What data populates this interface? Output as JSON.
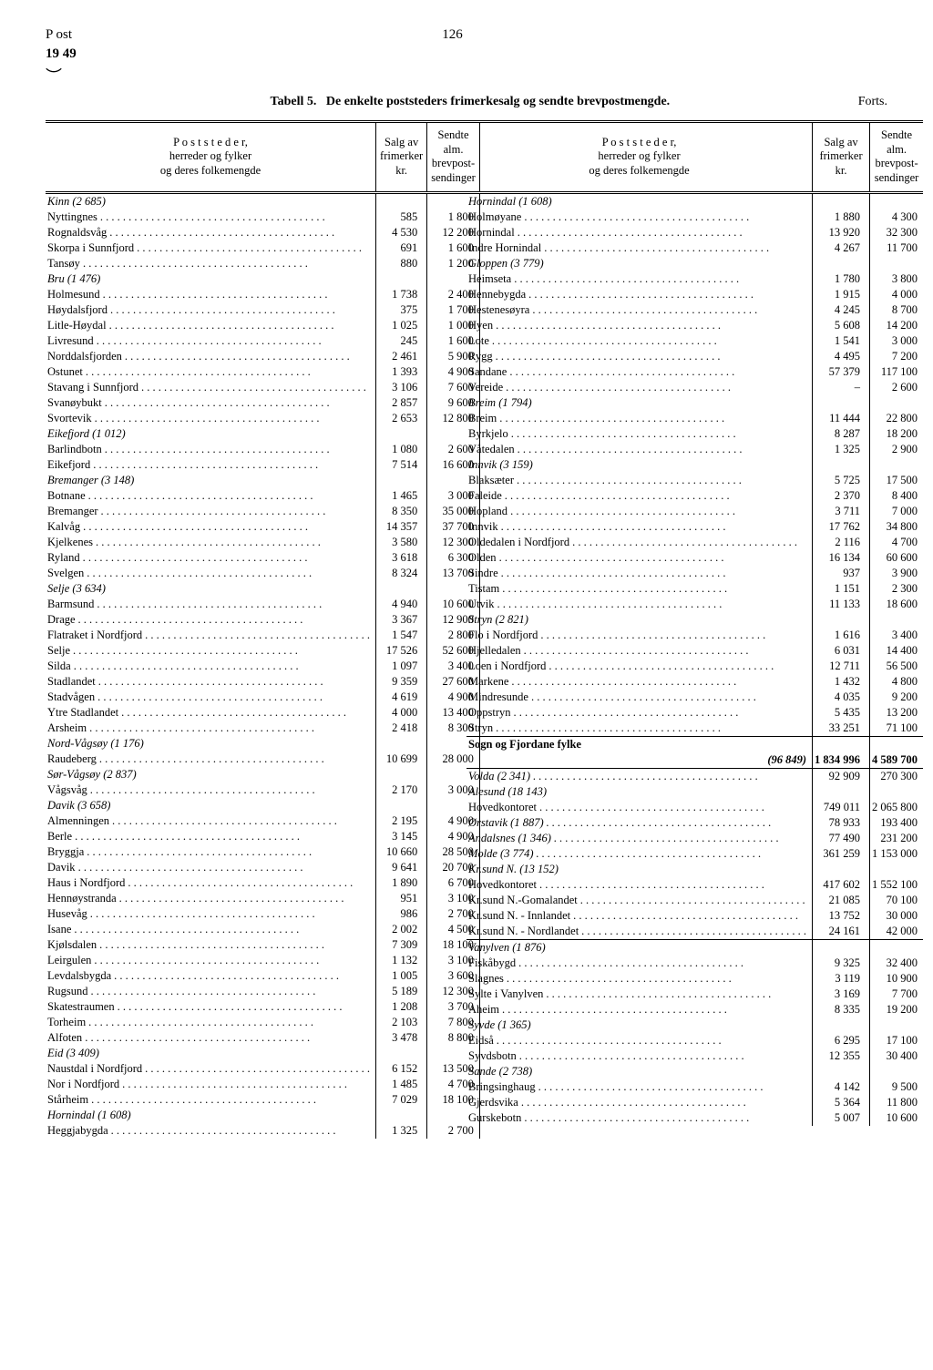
{
  "header": {
    "post": "P ost",
    "page": "126",
    "year": "19 49",
    "tableLabel": "Tabell 5.",
    "title": "De enkelte poststeders frimerkesalg og sendte brevpostmengde.",
    "forts": "Forts."
  },
  "colHeaders": {
    "h1": "P o s t s t e d e r,\nherreder og fylker\nog deres folkemengde",
    "h2": "Salg av\nfrimerker\nkr.",
    "h3": "Sendte\nalm.\nbrevpost-\nsendinger"
  },
  "left": [
    {
      "n": "Kinn (2 685)",
      "i": true
    },
    {
      "n": "Nyttingnes",
      "a": "585",
      "b": "1 800"
    },
    {
      "n": "Rognaldsvåg",
      "a": "4 530",
      "b": "12 200"
    },
    {
      "n": "Skorpa i Sunnfjord",
      "a": "691",
      "b": "1 600"
    },
    {
      "n": "Tansøy",
      "a": "880",
      "b": "1 200"
    },
    {
      "n": "Bru (1 476)",
      "i": true
    },
    {
      "n": "Holmesund",
      "a": "1 738",
      "b": "2 400"
    },
    {
      "n": "Høydalsfjord",
      "a": "375",
      "b": "1 700"
    },
    {
      "n": "Litle-Høydal",
      "a": "1 025",
      "b": "1 000"
    },
    {
      "n": "Livresund",
      "a": "245",
      "b": "1 600"
    },
    {
      "n": "Norddalsfjorden",
      "a": "2 461",
      "b": "5 900"
    },
    {
      "n": "Ostunet",
      "a": "1 393",
      "b": "4 900"
    },
    {
      "n": "Stavang i Sunnfjord",
      "a": "3 106",
      "b": "7 600"
    },
    {
      "n": "Svanøybukt",
      "a": "2 857",
      "b": "9 600"
    },
    {
      "n": "Svortevik",
      "a": "2 653",
      "b": "12 800"
    },
    {
      "n": "Eikefjord (1 012)",
      "i": true
    },
    {
      "n": "Barlindbotn",
      "a": "1 080",
      "b": "2 600"
    },
    {
      "n": "Eikefjord",
      "a": "7 514",
      "b": "16 600"
    },
    {
      "n": "Bremanger (3 148)",
      "i": true
    },
    {
      "n": "Botnane",
      "a": "1 465",
      "b": "3 000"
    },
    {
      "n": "Bremanger",
      "a": "8 350",
      "b": "35 000"
    },
    {
      "n": "Kalvåg",
      "a": "14 357",
      "b": "37 700"
    },
    {
      "n": "Kjelkenes",
      "a": "3 580",
      "b": "12 300"
    },
    {
      "n": "Ryland",
      "a": "3 618",
      "b": "6 300"
    },
    {
      "n": "Svelgen",
      "a": "8 324",
      "b": "13 700"
    },
    {
      "n": "Selje (3 634)",
      "i": true
    },
    {
      "n": "Barmsund",
      "a": "4 940",
      "b": "10 600"
    },
    {
      "n": "Drage",
      "a": "3 367",
      "b": "12 900"
    },
    {
      "n": "Flatraket i Nordfjord",
      "a": "1 547",
      "b": "2 800"
    },
    {
      "n": "Selje",
      "a": "17 526",
      "b": "52 600"
    },
    {
      "n": "Silda",
      "a": "1 097",
      "b": "3 400"
    },
    {
      "n": "Stadlandet",
      "a": "9 359",
      "b": "27 600"
    },
    {
      "n": "Stadvågen",
      "a": "4 619",
      "b": "4 900"
    },
    {
      "n": "Ytre Stadlandet",
      "a": "4 000",
      "b": "13 400"
    },
    {
      "n": "Arsheim",
      "a": "2 418",
      "b": "8 300"
    },
    {
      "n": "Nord-Vågsøy (1 176)",
      "i": true
    },
    {
      "n": "Raudeberg",
      "a": "10 699",
      "b": "28 000"
    },
    {
      "n": "Sør-Vågsøy (2 837)",
      "i": true
    },
    {
      "n": "Vågsvåg",
      "a": "2 170",
      "b": "3 000"
    },
    {
      "n": "Davik (3 658)",
      "i": true
    },
    {
      "n": "Almenningen",
      "a": "2 195",
      "b": "4 900"
    },
    {
      "n": "Berle",
      "a": "3 145",
      "b": "4 900"
    },
    {
      "n": "Bryggja",
      "a": "10 660",
      "b": "28 500"
    },
    {
      "n": "Davik",
      "a": "9 641",
      "b": "20 700"
    },
    {
      "n": "Haus i Nordfjord",
      "a": "1 890",
      "b": "6 700"
    },
    {
      "n": "Hennøystranda",
      "a": "951",
      "b": "3 100"
    },
    {
      "n": "Husevåg",
      "a": "986",
      "b": "2 700"
    },
    {
      "n": "Isane",
      "a": "2 002",
      "b": "4 500"
    },
    {
      "n": "Kjølsdalen",
      "a": "7 309",
      "b": "18 100"
    },
    {
      "n": "Leirgulen",
      "a": "1 132",
      "b": "3 100"
    },
    {
      "n": "Levdalsbygda",
      "a": "1 005",
      "b": "3 600"
    },
    {
      "n": "Rugsund",
      "a": "5 189",
      "b": "12 300"
    },
    {
      "n": "Skatestraumen",
      "a": "1 208",
      "b": "3 700"
    },
    {
      "n": "Torheim",
      "a": "2 103",
      "b": "7 800"
    },
    {
      "n": "Alfoten",
      "a": "3 478",
      "b": "8 800"
    },
    {
      "n": "Eid (3 409)",
      "i": true
    },
    {
      "n": "Naustdal i Nordfjord",
      "a": "6 152",
      "b": "13 500"
    },
    {
      "n": "Nor i Nordfjord",
      "a": "1 485",
      "b": "4 700"
    },
    {
      "n": "Stårheim",
      "a": "7 029",
      "b": "18 100"
    },
    {
      "n": "Hornindal (1 608)",
      "i": true
    },
    {
      "n": "Heggjabygda",
      "a": "1 325",
      "b": "2 700"
    }
  ],
  "right": [
    {
      "n": "Hornindal (1 608)",
      "i": true
    },
    {
      "n": "Holmøyane",
      "a": "1 880",
      "b": "4 300"
    },
    {
      "n": "Hornindal",
      "a": "13 920",
      "b": "32 300"
    },
    {
      "n": "Indre Hornindal",
      "a": "4 267",
      "b": "11 700"
    },
    {
      "n": "Gloppen (3 779)",
      "i": true
    },
    {
      "n": "Heimseta",
      "a": "1 780",
      "b": "3 800"
    },
    {
      "n": "Hennebygda",
      "a": "1 915",
      "b": "4 000"
    },
    {
      "n": "Hestenesøyra",
      "a": "4 245",
      "b": "8 700"
    },
    {
      "n": "Hyen",
      "a": "5 608",
      "b": "14 200"
    },
    {
      "n": "Lote",
      "a": "1 541",
      "b": "3 000"
    },
    {
      "n": "Rygg",
      "a": "4 495",
      "b": "7 200"
    },
    {
      "n": "Sandane",
      "a": "57 379",
      "b": "117 100"
    },
    {
      "n": "Vereide",
      "a": "–",
      "b": "2 600"
    },
    {
      "n": "Breim (1 794)",
      "i": true
    },
    {
      "n": "Breim",
      "a": "11 444",
      "b": "22 800"
    },
    {
      "n": "Byrkjelo",
      "a": "8 287",
      "b": "18 200"
    },
    {
      "n": "Våtedalen",
      "a": "1 325",
      "b": "2 900"
    },
    {
      "n": "Innvik (3 159)",
      "i": true
    },
    {
      "n": "Blaksæter",
      "a": "5 725",
      "b": "17 500"
    },
    {
      "n": "Faleide",
      "a": "2 370",
      "b": "8 400"
    },
    {
      "n": "Hopland",
      "a": "3 711",
      "b": "7 000"
    },
    {
      "n": "Innvik",
      "a": "17 762",
      "b": "34 800"
    },
    {
      "n": "Oldedalen i Nordfjord",
      "a": "2 116",
      "b": "4 700"
    },
    {
      "n": "Olden",
      "a": "16 134",
      "b": "60 600"
    },
    {
      "n": "Sindre",
      "a": "937",
      "b": "3 900"
    },
    {
      "n": "Tistam",
      "a": "1 151",
      "b": "2 300"
    },
    {
      "n": "Utvik",
      "a": "11 133",
      "b": "18 600"
    },
    {
      "n": "Stryn (2 821)",
      "i": true
    },
    {
      "n": "Flo i Nordfjord",
      "a": "1 616",
      "b": "3 400"
    },
    {
      "n": "Hjelledalen",
      "a": "6 031",
      "b": "14 400"
    },
    {
      "n": "Loen i Nordfjord",
      "a": "12 711",
      "b": "56 500"
    },
    {
      "n": "Markene",
      "a": "1 432",
      "b": "4 800"
    },
    {
      "n": "Mindresunde",
      "a": "4 035",
      "b": "9 200"
    },
    {
      "n": "Oppstryn",
      "a": "5 435",
      "b": "13 200"
    },
    {
      "n": "Stryn",
      "a": "33 251",
      "b": "71 100"
    },
    {
      "n": "Sogn og Fjordane fylke",
      "bold": true,
      "rule": "top"
    },
    {
      "n": "(96 849)",
      "a": "1 834 996",
      "b": "4 589 700",
      "right": true,
      "bold": true,
      "rule": "bottom"
    },
    {
      "n": "Volda (2 341)",
      "a": "92 909",
      "b": "270 300",
      "i": true,
      "rule": "top"
    },
    {
      "n": "Alesund (18 143)",
      "i": true
    },
    {
      "n": " Hovedkontoret",
      "a": "749 011",
      "b": "2 065 800"
    },
    {
      "n": " Ørstavik (1 887)",
      "a": "78 933",
      "b": "193 400",
      "i": true
    },
    {
      "n": "Andalsnes (1 346)",
      "a": "77 490",
      "b": "231 200",
      "i": true
    },
    {
      "n": "Molde (3 774)",
      "a": "361 259",
      "b": "1 153 000",
      "i": true
    },
    {
      "n": "Kr.sund N. (13 152)",
      "i": true
    },
    {
      "n": " Hovedkontoret",
      "a": "417 602",
      "b": "1 552 100"
    },
    {
      "n": " Kr.sund N.-Gomalandet",
      "a": "21 085",
      "b": "70 100"
    },
    {
      "n": " Kr.sund N. - Innlandet",
      "a": "13 752",
      "b": "30 000"
    },
    {
      "n": " Kr.sund N. - Nordlandet",
      "a": "24 161",
      "b": "42 000"
    },
    {
      "n": "Vanylven (1 876)",
      "i": true,
      "rule": "top"
    },
    {
      "n": "Fiskåbygd",
      "a": "9 325",
      "b": "32 400"
    },
    {
      "n": "Slagnes",
      "a": "3 119",
      "b": "10 900"
    },
    {
      "n": "Sylte i Vanylven",
      "a": "3 169",
      "b": "7 700"
    },
    {
      "n": "Aheim",
      "a": "8 335",
      "b": "19 200"
    },
    {
      "n": "Syvde (1 365)",
      "i": true
    },
    {
      "n": "Eidså",
      "a": "6 295",
      "b": "17 100"
    },
    {
      "n": "Syvdsbotn",
      "a": "12 355",
      "b": "30 400"
    },
    {
      "n": "Sande (2 738)",
      "i": true
    },
    {
      "n": "Bringsinghaug",
      "a": "4 142",
      "b": "9 500"
    },
    {
      "n": "Gjerdsvika",
      "a": "5 364",
      "b": "11 800"
    },
    {
      "n": "Gurskebotn",
      "a": "5 007",
      "b": "10 600"
    }
  ]
}
